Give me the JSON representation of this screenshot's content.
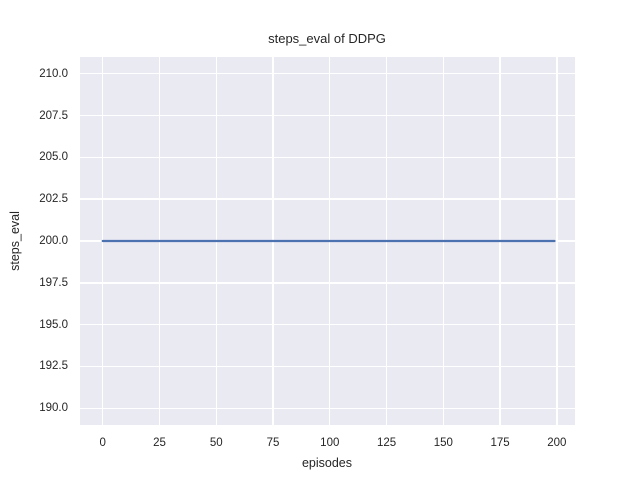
{
  "chart_data": {
    "type": "line",
    "title": "steps_eval of DDPG",
    "xlabel": "episodes",
    "ylabel": "steps_eval",
    "xlim": [
      -10,
      208
    ],
    "ylim": [
      189,
      211
    ],
    "xticks": [
      0,
      25,
      50,
      75,
      100,
      125,
      150,
      175,
      200
    ],
    "xtick_labels": [
      "0",
      "25",
      "50",
      "75",
      "100",
      "125",
      "150",
      "175",
      "200"
    ],
    "yticks": [
      190,
      192.5,
      195,
      197.5,
      200,
      202.5,
      205,
      207.5,
      210
    ],
    "ytick_labels": [
      "190.0",
      "192.5",
      "195.0",
      "197.5",
      "200.0",
      "202.5",
      "205.0",
      "207.5",
      "210.0"
    ],
    "grid": true,
    "legend": false,
    "plot_background": "#eaeaf2",
    "gridline_color": "#ffffff",
    "text_color": "#262626",
    "series": [
      {
        "name": "steps_eval",
        "color": "#4c72b0",
        "linewidth": 2.2,
        "x": [
          0,
          199
        ],
        "y": [
          200,
          200
        ]
      }
    ]
  }
}
